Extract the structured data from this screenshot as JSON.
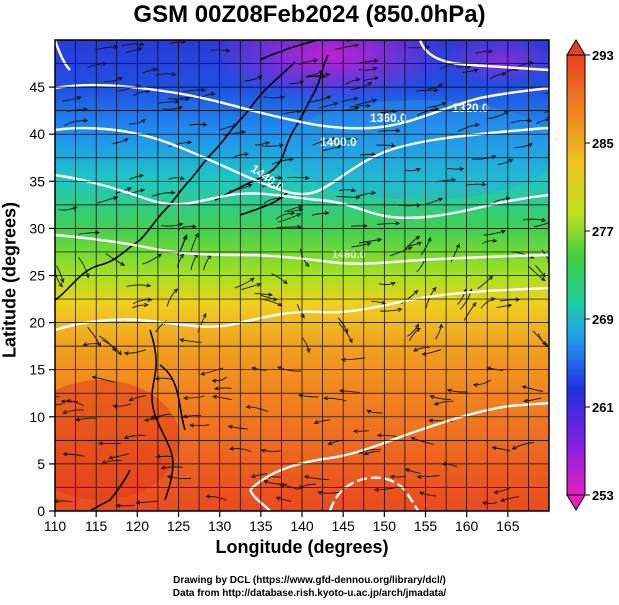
{
  "title": "GSM 00Z08Feb2024 (850.0hPa)",
  "xaxis": {
    "label": "Longitude (degrees)",
    "ticks": [
      "110",
      "115",
      "120",
      "125",
      "130",
      "135",
      "140",
      "145",
      "150",
      "155",
      "160",
      "165"
    ],
    "range": [
      110,
      170
    ]
  },
  "yaxis": {
    "label": "Latitude  (degrees)",
    "ticks": [
      "0",
      "5",
      "10",
      "15",
      "20",
      "25",
      "30",
      "35",
      "40",
      "45"
    ],
    "range": [
      0,
      50
    ]
  },
  "colorbar": {
    "ticks": [
      "293",
      "285",
      "277",
      "269",
      "261",
      "253"
    ],
    "range": [
      253,
      293
    ],
    "colors": [
      "#e020c0",
      "#8020e0",
      "#2030e0",
      "#20a0f0",
      "#20d0a0",
      "#40d040",
      "#c0e020",
      "#f0c020",
      "#f08020",
      "#e84020"
    ]
  },
  "contours": {
    "labels": [
      "1320.0",
      "1360.0",
      "1400.0",
      "1440.0",
      "1480.0"
    ],
    "color": "#ffffff"
  },
  "credits": {
    "line1": "Drawing by DCL (https://www.gfd-dennou.org/library/dcl/)",
    "line2": "Data from http://database.rish.kyoto-u.ac.jp/arch/jmadata/"
  }
}
